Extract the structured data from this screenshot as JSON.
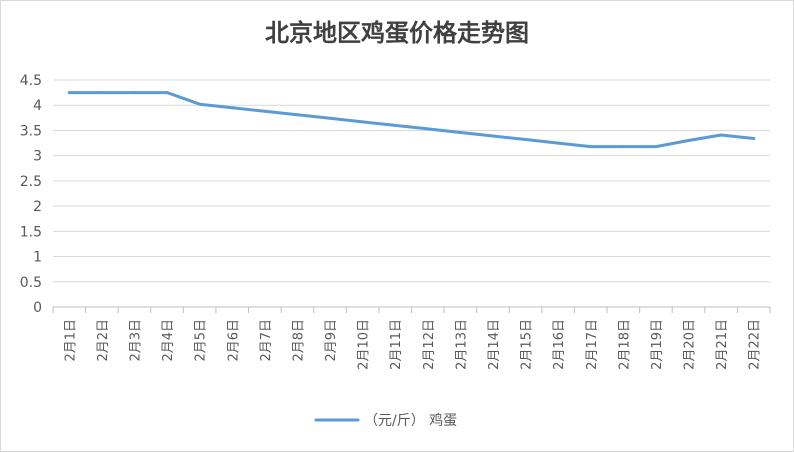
{
  "chart_data": {
    "type": "line",
    "title": "北京地区鸡蛋价格走势图",
    "xlabel": "",
    "ylabel": "",
    "categories": [
      "2月1日",
      "2月2日",
      "2月3日",
      "2月4日",
      "2月5日",
      "2月6日",
      "2月7日",
      "2月8日",
      "2月9日",
      "2月10日",
      "2月11日",
      "2月12日",
      "2月13日",
      "2月14日",
      "2月15日",
      "2月16日",
      "2月17日",
      "2月18日",
      "2月19日",
      "2月20日",
      "2月21日",
      "2月22日"
    ],
    "series": [
      {
        "name": "（元/斤） 鸡蛋",
        "color": "#5b9bd5",
        "values": [
          4.25,
          4.25,
          4.25,
          4.25,
          4.02,
          3.95,
          3.88,
          3.81,
          3.74,
          3.67,
          3.6,
          3.53,
          3.46,
          3.39,
          3.32,
          3.25,
          3.18,
          3.18,
          3.18,
          3.3,
          3.41,
          3.34
        ]
      }
    ],
    "ylim": [
      0,
      4.5
    ],
    "yticks": [
      "0",
      "0.5",
      "1",
      "1.5",
      "2",
      "2.5",
      "3",
      "3.5",
      "4",
      "4.5"
    ],
    "grid": true,
    "legend": "bottom"
  }
}
